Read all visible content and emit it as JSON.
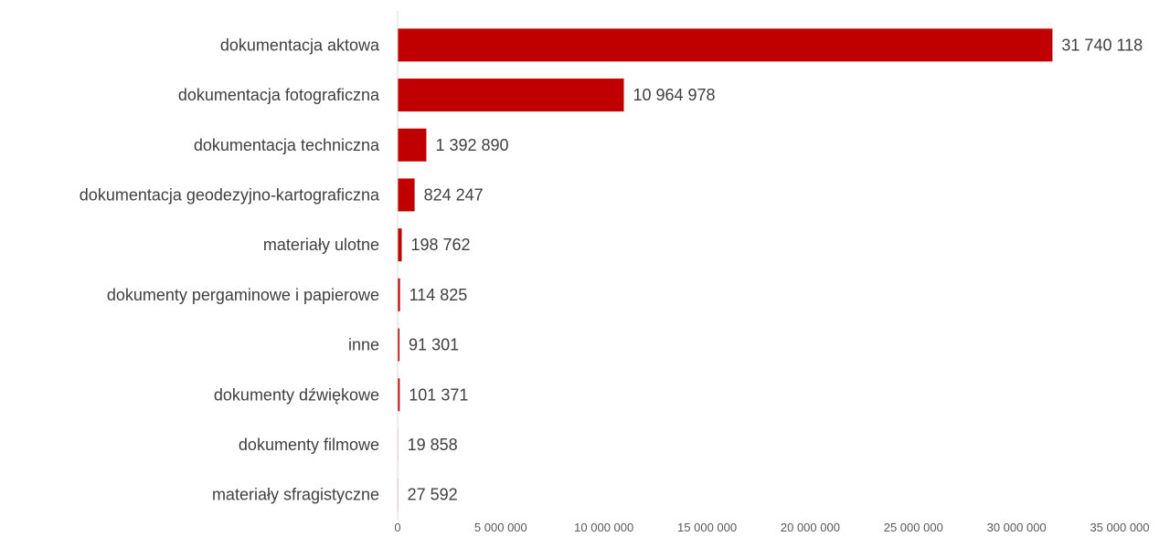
{
  "chart_data": {
    "type": "bar",
    "orientation": "horizontal",
    "categories": [
      "dokumentacja aktowa",
      "dokumentacja fotograficzna",
      "dokumentacja techniczna",
      "dokumentacja geodezyjno-kartograficzna",
      "materiały ulotne",
      "dokumenty pergaminowe i papierowe",
      "inne",
      "dokumenty dźwiękowe",
      "dokumenty filmowe",
      "materiały sfragistyczne"
    ],
    "values": [
      31740118,
      10964978,
      1392890,
      824247,
      198762,
      114825,
      91301,
      101371,
      19858,
      27592
    ],
    "value_labels": [
      "31 740 118",
      "10 964 978",
      "1 392 890",
      "824 247",
      "198 762",
      "114 825",
      "91 301",
      "101 371",
      "19 858",
      "27 592"
    ],
    "xlim": [
      0,
      35000000
    ],
    "x_ticks": [
      0,
      5000000,
      10000000,
      15000000,
      20000000,
      25000000,
      30000000,
      35000000
    ],
    "x_tick_labels": [
      "0",
      "5 000 000",
      "10 000 000",
      "15 000 000",
      "20 000 000",
      "25 000 000",
      "30 000 000",
      "35 000 000"
    ],
    "title": "",
    "xlabel": "",
    "ylabel": "",
    "grid": false,
    "legend": "none",
    "bar_color": "#C00000",
    "axis_color": "#D9D9D9"
  }
}
